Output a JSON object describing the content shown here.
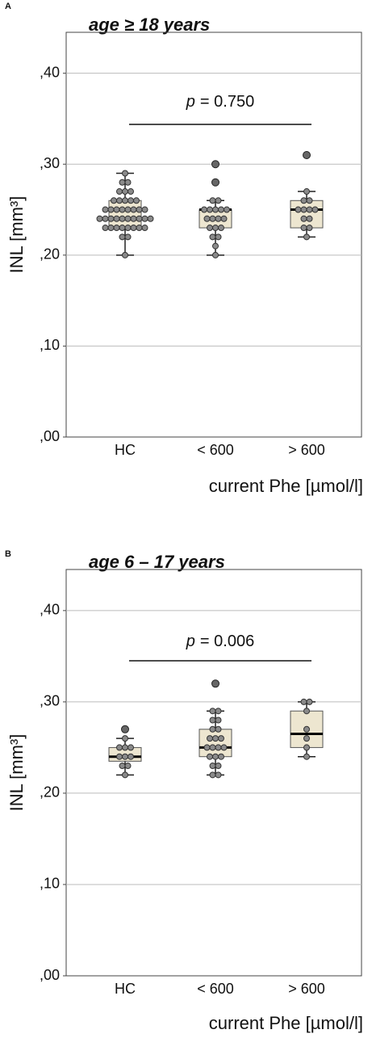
{
  "chart_data": [
    {
      "type": "box",
      "panel": "A",
      "title": "age ≥ 18 years",
      "ylabel": "INL [mm³]",
      "xlabel": "current Phe [µmol/l]",
      "annotation_symbol": "p",
      "annotation_text": "= 0.750",
      "categories": [
        "HC",
        "< 600",
        "> 600"
      ],
      "ylim": [
        0,
        0.445
      ],
      "yticks": [
        {
          "value": 0,
          "label": ",00"
        },
        {
          "value": 0.1,
          "label": ",10"
        },
        {
          "value": 0.2,
          "label": ",20"
        },
        {
          "value": 0.3,
          "label": ",30"
        },
        {
          "value": 0.4,
          "label": ",40"
        }
      ],
      "grid": true,
      "color": "#ede6d0",
      "boxes": [
        {
          "whisker_low": 0.2,
          "q1": 0.23,
          "median": 0.24,
          "q3": 0.26,
          "whisker_high": 0.29,
          "outliers": [],
          "points": [
            0.2,
            0.22,
            0.22,
            0.23,
            0.23,
            0.23,
            0.23,
            0.23,
            0.23,
            0.23,
            0.23,
            0.24,
            0.24,
            0.24,
            0.24,
            0.24,
            0.24,
            0.24,
            0.24,
            0.24,
            0.24,
            0.25,
            0.25,
            0.25,
            0.25,
            0.25,
            0.25,
            0.25,
            0.25,
            0.26,
            0.26,
            0.26,
            0.26,
            0.26,
            0.27,
            0.27,
            0.27,
            0.28,
            0.28,
            0.29
          ]
        },
        {
          "whisker_low": 0.2,
          "q1": 0.23,
          "median": 0.25,
          "q3": 0.25,
          "whisker_high": 0.26,
          "outliers": [
            0.28,
            0.3
          ],
          "points": [
            0.2,
            0.21,
            0.22,
            0.22,
            0.23,
            0.23,
            0.23,
            0.24,
            0.24,
            0.24,
            0.24,
            0.25,
            0.25,
            0.25,
            0.25,
            0.25,
            0.26,
            0.26
          ]
        },
        {
          "whisker_low": 0.22,
          "q1": 0.23,
          "median": 0.25,
          "q3": 0.26,
          "whisker_high": 0.27,
          "outliers": [
            0.31
          ],
          "points": [
            0.22,
            0.23,
            0.23,
            0.24,
            0.24,
            0.25,
            0.25,
            0.25,
            0.25,
            0.26,
            0.26,
            0.27
          ]
        }
      ]
    },
    {
      "type": "box",
      "panel": "B",
      "title": "age 6 – 17 years",
      "ylabel": "INL [mm³]",
      "xlabel": "current Phe [µmol/l]",
      "annotation_symbol": "p",
      "annotation_text": "= 0.006",
      "categories": [
        "HC",
        "< 600",
        "> 600"
      ],
      "ylim": [
        0,
        0.445
      ],
      "yticks": [
        {
          "value": 0,
          "label": ",00"
        },
        {
          "value": 0.1,
          "label": ",10"
        },
        {
          "value": 0.2,
          "label": ",20"
        },
        {
          "value": 0.3,
          "label": ",30"
        },
        {
          "value": 0.4,
          "label": ",40"
        }
      ],
      "grid": true,
      "color": "#ede6d0",
      "boxes": [
        {
          "whisker_low": 0.22,
          "q1": 0.235,
          "median": 0.24,
          "q3": 0.25,
          "whisker_high": 0.26,
          "outliers": [
            0.27
          ],
          "points": [
            0.22,
            0.23,
            0.23,
            0.24,
            0.24,
            0.24,
            0.25,
            0.25,
            0.25,
            0.26
          ]
        },
        {
          "whisker_low": 0.22,
          "q1": 0.24,
          "median": 0.25,
          "q3": 0.27,
          "whisker_high": 0.29,
          "outliers": [
            0.32
          ],
          "points": [
            0.22,
            0.22,
            0.23,
            0.23,
            0.24,
            0.24,
            0.24,
            0.25,
            0.25,
            0.25,
            0.25,
            0.26,
            0.26,
            0.26,
            0.27,
            0.27,
            0.28,
            0.28,
            0.29,
            0.29
          ]
        },
        {
          "whisker_low": 0.24,
          "q1": 0.25,
          "median": 0.265,
          "q3": 0.29,
          "whisker_high": 0.3,
          "outliers": [],
          "points": [
            0.24,
            0.25,
            0.26,
            0.27,
            0.29,
            0.3,
            0.3
          ]
        }
      ]
    }
  ]
}
